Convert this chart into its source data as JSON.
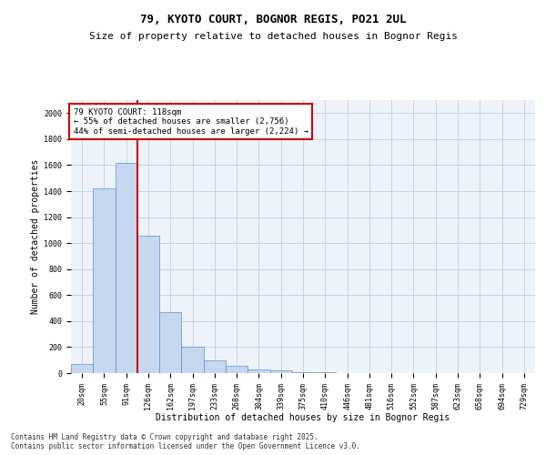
{
  "title_line1": "79, KYOTO COURT, BOGNOR REGIS, PO21 2UL",
  "title_line2": "Size of property relative to detached houses in Bognor Regis",
  "xlabel": "Distribution of detached houses by size in Bognor Regis",
  "ylabel": "Number of detached properties",
  "categories": [
    "20sqm",
    "55sqm",
    "91sqm",
    "126sqm",
    "162sqm",
    "197sqm",
    "233sqm",
    "268sqm",
    "304sqm",
    "339sqm",
    "375sqm",
    "410sqm",
    "446sqm",
    "481sqm",
    "516sqm",
    "552sqm",
    "587sqm",
    "623sqm",
    "658sqm",
    "694sqm",
    "729sqm"
  ],
  "values": [
    70,
    1420,
    1620,
    1060,
    470,
    200,
    100,
    55,
    30,
    20,
    10,
    5,
    0,
    0,
    0,
    0,
    0,
    0,
    0,
    0,
    0
  ],
  "bar_color": "#c5d8f0",
  "bar_edge_color": "#5a8fc4",
  "vline_color": "#cc0000",
  "annotation_box_text": "79 KYOTO COURT: 118sqm\n← 55% of detached houses are smaller (2,756)\n44% of semi-detached houses are larger (2,224) →",
  "annotation_box_color": "#cc0000",
  "annotation_box_fill": "#ffffff",
  "ylim": [
    0,
    2100
  ],
  "yticks": [
    0,
    200,
    400,
    600,
    800,
    1000,
    1200,
    1400,
    1600,
    1800,
    2000
  ],
  "grid_color": "#c8d4e8",
  "background_color": "#eef3fa",
  "footnote": "Contains HM Land Registry data © Crown copyright and database right 2025.\nContains public sector information licensed under the Open Government Licence v3.0.",
  "title_fontsize": 9,
  "subtitle_fontsize": 8,
  "label_fontsize": 7,
  "tick_fontsize": 6,
  "annotation_fontsize": 6.5,
  "footnote_fontsize": 5.5
}
